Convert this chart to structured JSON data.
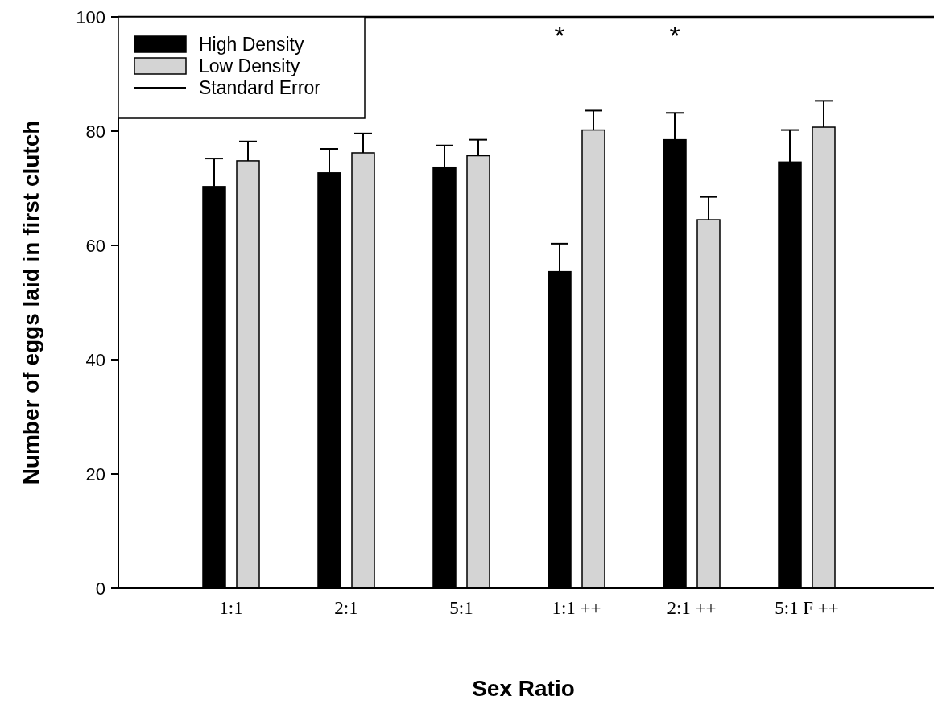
{
  "chart_data": {
    "type": "bar",
    "xlabel": "Sex Ratio",
    "ylabel": "Number of eggs laid in first clutch",
    "categories": [
      "1:1",
      "2:1",
      "5:1",
      "1:1 ++",
      "2:1 ++",
      "5:1 F ++"
    ],
    "series": [
      {
        "name": "High Density",
        "color": "#000000",
        "values": [
          70.3,
          72.7,
          73.7,
          55.4,
          78.5,
          74.6
        ],
        "errors": [
          4.9,
          4.2,
          3.8,
          4.9,
          4.7,
          5.6
        ]
      },
      {
        "name": "Low Density",
        "color": "#d4d4d4",
        "values": [
          74.8,
          76.2,
          75.7,
          80.2,
          64.5,
          80.7
        ],
        "errors": [
          3.4,
          3.4,
          2.8,
          3.4,
          4.0,
          4.6
        ]
      }
    ],
    "ylim": [
      0,
      100
    ],
    "yticks": [
      0,
      20,
      40,
      60,
      80,
      100
    ],
    "grid": false,
    "legend": "top left",
    "annotations": [
      "Standard Error",
      "*",
      "*"
    ]
  }
}
